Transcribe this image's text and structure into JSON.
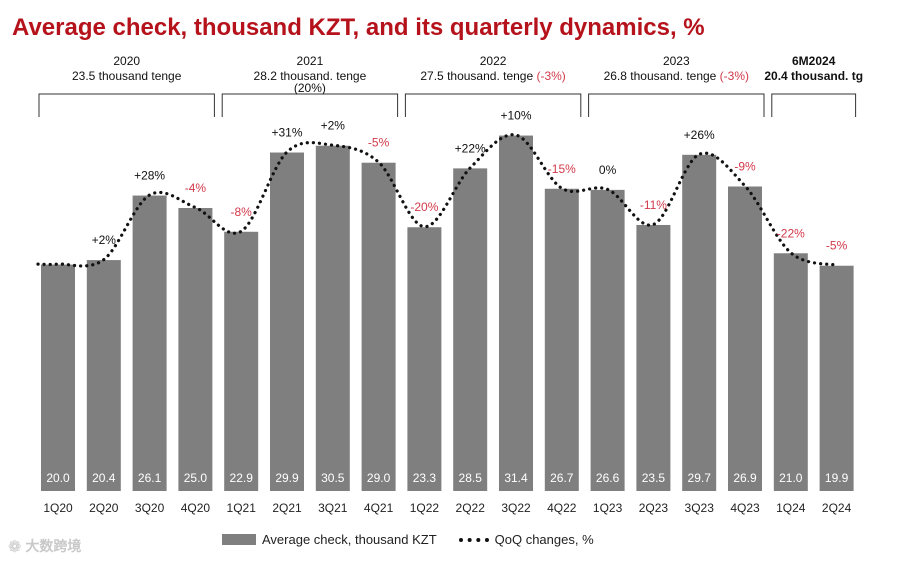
{
  "chart_data": {
    "type": "bar",
    "title": "Average check, thousand KZT, and its quarterly dynamics, %",
    "categories": [
      "1Q20",
      "2Q20",
      "3Q20",
      "4Q20",
      "1Q21",
      "2Q21",
      "3Q21",
      "4Q21",
      "1Q22",
      "2Q22",
      "3Q22",
      "4Q22",
      "1Q23",
      "2Q23",
      "3Q23",
      "4Q23",
      "1Q24",
      "2Q24"
    ],
    "series": [
      {
        "name": "Average check, thousand KZT",
        "type": "bar",
        "color": "#7f7f7f",
        "values": [
          20.0,
          20.4,
          26.1,
          25.0,
          22.9,
          29.9,
          30.5,
          29.0,
          23.3,
          28.5,
          31.4,
          26.7,
          26.6,
          23.5,
          29.7,
          26.9,
          21.0,
          19.9
        ],
        "value_labels": [
          "20.0",
          "20.4",
          "26.1",
          "25.0",
          "22.9",
          "29.9",
          "30.5",
          "29.0",
          "23.3",
          "28.5",
          "31.4",
          "26.7",
          "26.6",
          "23.5",
          "29.7",
          "26.9",
          "21.0",
          "19.9"
        ]
      },
      {
        "name": "QoQ changes, %",
        "type": "line",
        "style": "dotted",
        "color": "#111111",
        "labels": [
          "",
          "+2%",
          "+28%",
          "-4%",
          "-8%",
          "+31%",
          "+2%",
          "-5%",
          "-20%",
          "+22%",
          "+10%",
          "-15%",
          "0%",
          "-11%",
          "+26%",
          "-9%",
          "-22%",
          "-5%"
        ]
      }
    ],
    "label_colors": {
      "positive": "#111111",
      "negative": "#d2394a"
    },
    "ylim": [
      0,
      40
    ],
    "grid": false,
    "legend_position": "bottom",
    "year_groups": [
      {
        "year": "2020",
        "subtitle": "23.5 thousand tenge",
        "note": "",
        "bold": false,
        "start": 0,
        "end": 3
      },
      {
        "year": "2021",
        "subtitle": "28.2 thousand. tenge",
        "note": "(20%)",
        "bold": false,
        "start": 4,
        "end": 7
      },
      {
        "year": "2022",
        "subtitle": "27.5 thousand. tenge",
        "note": "(-3%)",
        "bold": false,
        "start": 8,
        "end": 11
      },
      {
        "year": "2023",
        "subtitle": "26.8 thousand. tenge",
        "note": "(-3%)",
        "bold": false,
        "start": 12,
        "end": 15
      },
      {
        "year": "6M2024",
        "subtitle": "20.4 thousand. tg",
        "note": "",
        "bold": true,
        "start": 16,
        "end": 17
      }
    ]
  },
  "legend": {
    "bar_label": "Average check, thousand KZT",
    "line_label": "QoQ changes, %"
  },
  "watermark": {
    "text": "大数跨境"
  }
}
